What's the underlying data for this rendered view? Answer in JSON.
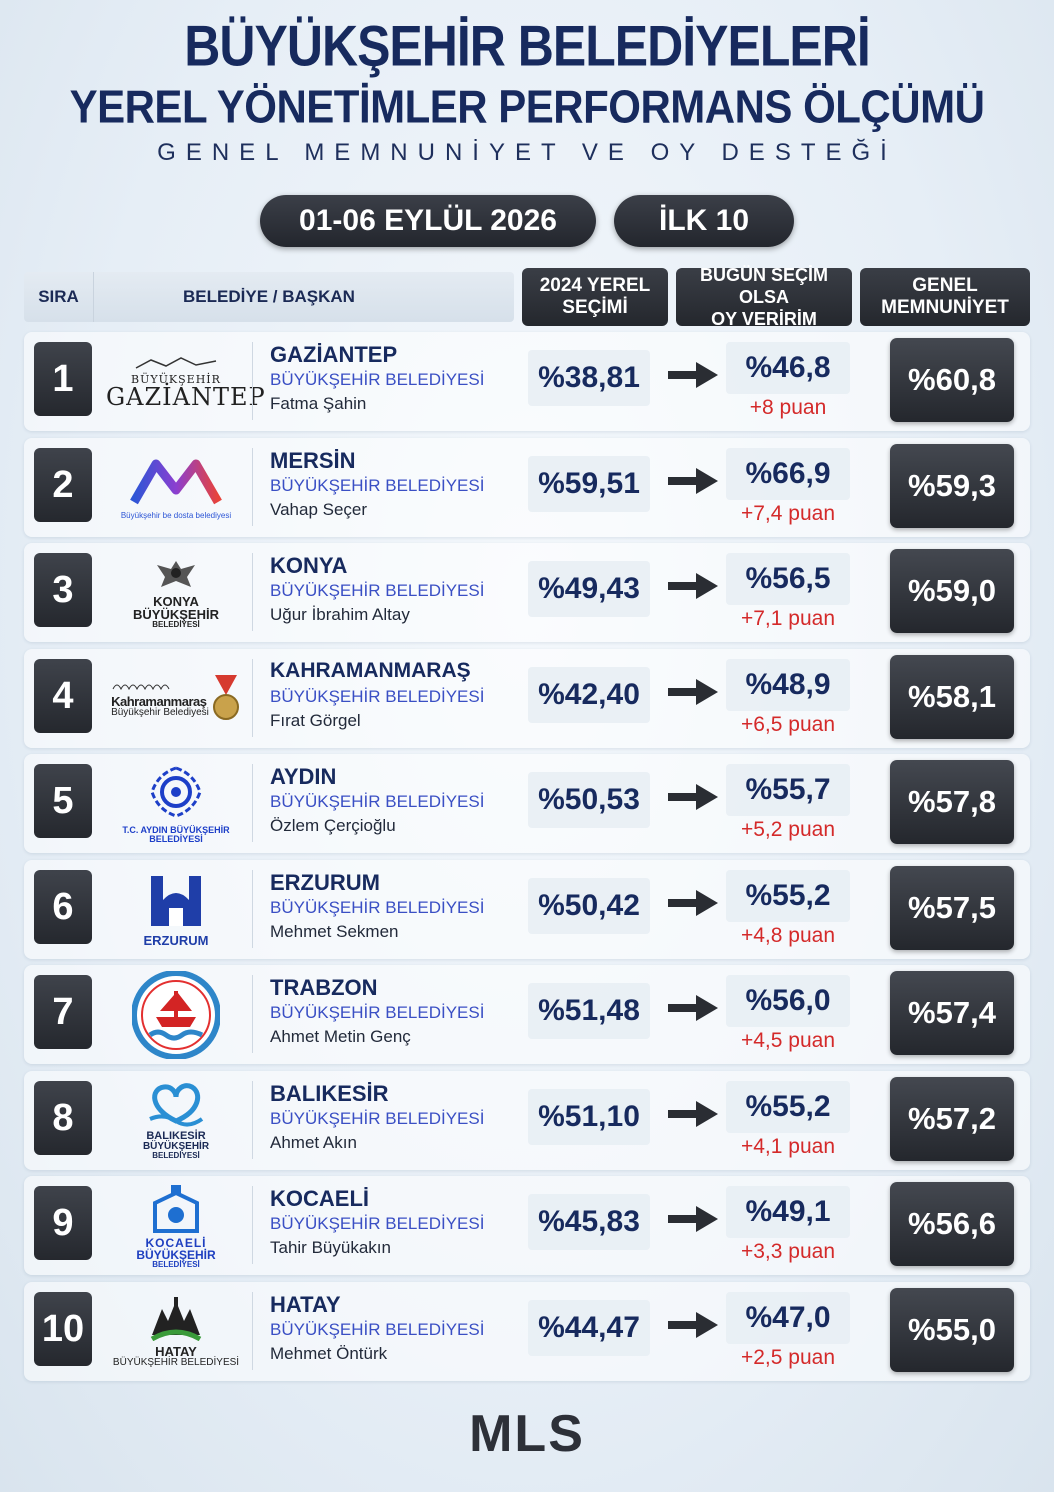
{
  "header": {
    "title_line1": "BÜYÜKŞEHİR BELEDİYELERİ",
    "title_line2": "YEREL YÖNETİMLER PERFORMANS ÖLÇÜMÜ",
    "subtitle": "GENEL MEMNUNİYET VE OY DESTEĞİ",
    "date": "01-06 EYLÜL 2026",
    "top_label": "İLK 10"
  },
  "table_header": {
    "sira": "SIRA",
    "belediye": "BELEDİYE / BAŞKAN",
    "col_2024_line1": "2024 YEREL",
    "col_2024_line2": "SEÇİMİ",
    "col_bugun_line1": "BUGÜN SEÇİM OLSA",
    "col_bugun_line2": "OY VERİRİM",
    "col_genel_line1": "GENEL",
    "col_genel_line2": "MEMNUNİYET"
  },
  "rows": [
    {
      "rank": "1",
      "city": "GAZİANTEP",
      "belediye": "BÜYÜKŞEHİR BELEDİYESİ",
      "mayor": "Fatma Şahin",
      "v2024": "%38,81",
      "vnow": "%46,8",
      "delta": "+8 puan",
      "genel": "%60,8",
      "logo_icon": "gaziantep-logo",
      "logo_text1": "BÜYÜKŞEHİR",
      "logo_text2": "GAZİANTEP"
    },
    {
      "rank": "2",
      "city": "MERSİN",
      "belediye": "BÜYÜKŞEHİR BELEDİYESİ",
      "mayor": "Vahap Seçer",
      "v2024": "%59,51",
      "vnow": "%66,9",
      "delta": "+7,4 puan",
      "genel": "%59,3",
      "logo_icon": "mersin-logo",
      "logo_text1": "Büyükşehir be dosta belediyesi",
      "logo_text2": ""
    },
    {
      "rank": "3",
      "city": "KONYA",
      "belediye": "BÜYÜKŞEHİR BELEDİYESİ",
      "mayor": "Uğur İbrahim Altay",
      "v2024": "%49,43",
      "vnow": "%56,5",
      "delta": "+7,1 puan",
      "genel": "%59,0",
      "logo_icon": "konya-logo",
      "logo_text1": "KONYA",
      "logo_text2": "BÜYÜKŞEHİR",
      "logo_text3": "BELEDİYESİ"
    },
    {
      "rank": "4",
      "city": "KAHRAMANMARAŞ",
      "belediye": "BÜYÜKŞEHİR BELEDİYESİ",
      "mayor": "Fırat Görgel",
      "v2024": "%42,40",
      "vnow": "%48,9",
      "delta": "+6,5 puan",
      "genel": "%58,1",
      "logo_icon": "kahramanmaras-logo",
      "logo_text1": "Kahramanmaraş",
      "logo_text2": "Büyükşehir Belediyesi"
    },
    {
      "rank": "5",
      "city": "AYDIN",
      "belediye": "BÜYÜKŞEHİR BELEDİYESİ",
      "mayor": "Özlem Çerçioğlu",
      "v2024": "%50,53",
      "vnow": "%55,7",
      "delta": "+5,2 puan",
      "genel": "%57,8",
      "logo_icon": "aydin-logo",
      "logo_text1": "T.C. AYDIN BÜYÜKŞEHİR",
      "logo_text2": "BELEDİYESİ"
    },
    {
      "rank": "6",
      "city": "ERZURUM",
      "belediye": "BÜYÜKŞEHİR BELEDİYESİ",
      "mayor": "Mehmet Sekmen",
      "v2024": "%50,42",
      "vnow": "%55,2",
      "delta": "+4,8 puan",
      "genel": "%57,5",
      "logo_icon": "erzurum-logo",
      "logo_text1": "ERZURUM",
      "logo_text2": ""
    },
    {
      "rank": "7",
      "city": "TRABZON",
      "belediye": "BÜYÜKŞEHİR BELEDİYESİ",
      "mayor": "Ahmet Metin Genç",
      "v2024": "%51,48",
      "vnow": "%56,0",
      "delta": "+4,5 puan",
      "genel": "%57,4",
      "logo_icon": "trabzon-logo",
      "logo_text1": "",
      "logo_text2": ""
    },
    {
      "rank": "8",
      "city": "BALIKESİR",
      "belediye": "BÜYÜKŞEHİR BELEDİYESİ",
      "mayor": "Ahmet Akın",
      "v2024": "%51,10",
      "vnow": "%55,2",
      "delta": "+4,1 puan",
      "genel": "%57,2",
      "logo_icon": "balikesir-logo",
      "logo_text1": "BALIKESİR",
      "logo_text2": "BÜYÜKŞEHİR",
      "logo_text3": "BELEDİYESİ"
    },
    {
      "rank": "9",
      "city": "KOCAELİ",
      "belediye": "BÜYÜKŞEHİR BELEDİYESİ",
      "mayor": "Tahir Büyükakın",
      "v2024": "%45,83",
      "vnow": "%49,1",
      "delta": "+3,3 puan",
      "genel": "%56,6",
      "logo_icon": "kocaeli-logo",
      "logo_text1": "KOCAELİ",
      "logo_text2": "BÜYÜKŞEHİR",
      "logo_text3": "BELEDİYESİ"
    },
    {
      "rank": "10",
      "city": "HATAY",
      "belediye": "BÜYÜKŞEHİR BELEDİYESİ",
      "mayor": "Mehmet Öntürk",
      "v2024": "%44,47",
      "vnow": "%47,0",
      "delta": "+2,5 puan",
      "genel": "%55,0",
      "logo_icon": "hatay-logo",
      "logo_text1": "HATAY",
      "logo_text2": "BÜYÜKŞEHİR BELEDİYESİ"
    }
  ],
  "colors": {
    "title": "#172a5e",
    "link_blue": "#3a4fc4",
    "delta_red": "#d42a2a",
    "dark_box": "#2b2e35"
  },
  "footer": {
    "brand": "MLS"
  }
}
